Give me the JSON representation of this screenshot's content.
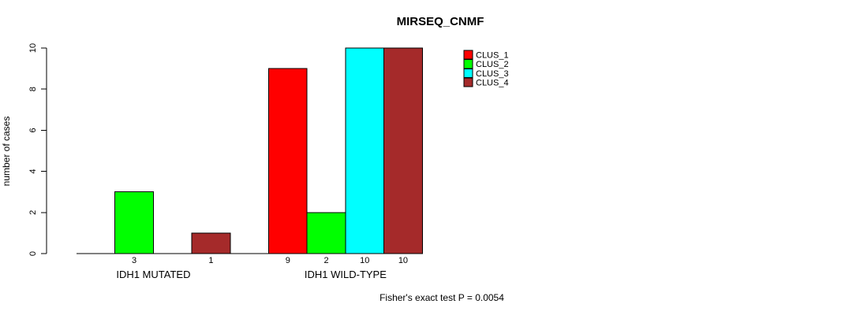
{
  "chart_data": {
    "type": "bar",
    "title": "MIRSEQ_CNMF",
    "ylabel": "number of cases",
    "xlabel": "",
    "categories": [
      "IDH1 MUTATED",
      "IDH1 WILD-TYPE"
    ],
    "series": [
      {
        "name": "CLUS_1",
        "color": "#FF0000",
        "values": [
          0,
          9
        ]
      },
      {
        "name": "CLUS_2",
        "color": "#00FF00",
        "values": [
          3,
          2
        ]
      },
      {
        "name": "CLUS_3",
        "color": "#00FFFF",
        "values": [
          0,
          10
        ]
      },
      {
        "name": "CLUS_4",
        "color": "#A52A2A",
        "values": [
          1,
          10
        ]
      }
    ],
    "bar_value_labels": [
      [
        "",
        "3",
        "",
        "1"
      ],
      [
        "9",
        "2",
        "10",
        "10"
      ]
    ],
    "ylim": [
      0,
      10
    ],
    "yticks": [
      0,
      2,
      4,
      6,
      8,
      10
    ],
    "grid": false,
    "legend_position": "top-right",
    "annotation": "Fisher's exact test P = 0.0054",
    "axis_color": "#000000",
    "background_color": "#FFFFFF"
  }
}
